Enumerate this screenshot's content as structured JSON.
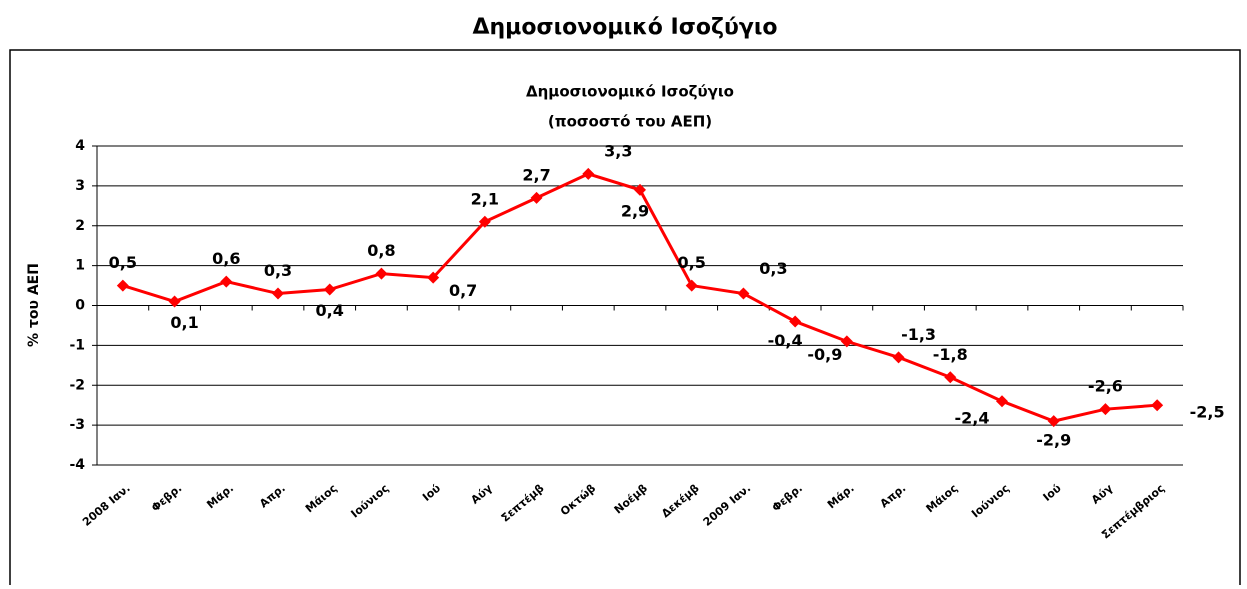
{
  "chart_data": {
    "type": "line",
    "page_title": "Δημοσιονομικό Ισοζύγιο",
    "title": "Δημοσιονομικό Ισοζύγιο",
    "subtitle": "(ποσοστό του ΑΕΠ)",
    "y_label": "% του ΑΕΠ",
    "categories": [
      "2008 Ιαν.",
      "Φεβρ.",
      "Μάρ.",
      "Απρ.",
      "Μάιος",
      "Ιούνιος",
      "Ιού",
      "Αύγ",
      "Σεπτέμβ",
      "Οκτώβ",
      "Νοέμβ",
      "Δεκέμβ",
      "2009 Ιαν.",
      "Φεβρ.",
      "Μάρ.",
      "Απρ.",
      "Μάιος",
      "Ιούνιος",
      "Ιού",
      "Αύγ",
      "Σεπτέμβριος"
    ],
    "series": [
      {
        "name": "Δημοσιονομικό Ισοζύγιο",
        "color": "#ff0000",
        "values": [
          0.5,
          0.1,
          0.6,
          0.3,
          0.4,
          0.8,
          0.7,
          2.1,
          2.7,
          3.3,
          2.9,
          0.5,
          0.3,
          -0.4,
          -0.9,
          -1.3,
          -1.8,
          -2.4,
          -2.9,
          -2.6,
          -2.5
        ],
        "value_labels": [
          "0,5",
          "0,1",
          "0,6",
          "0,3",
          "0,4",
          "0,8",
          "0,7",
          "2,1",
          "2,7",
          "3,3",
          "2,9",
          "0,5",
          "0,3",
          "-0,4",
          "-0,9",
          "-1,3",
          "-1,8",
          "-2,4",
          "-2,9",
          "-2,6",
          "-2,5"
        ]
      }
    ],
    "ylim": [
      -4,
      4
    ],
    "yticks": [
      -4,
      -3,
      -2,
      -1,
      0,
      1,
      2,
      3,
      4
    ],
    "grid": true
  }
}
